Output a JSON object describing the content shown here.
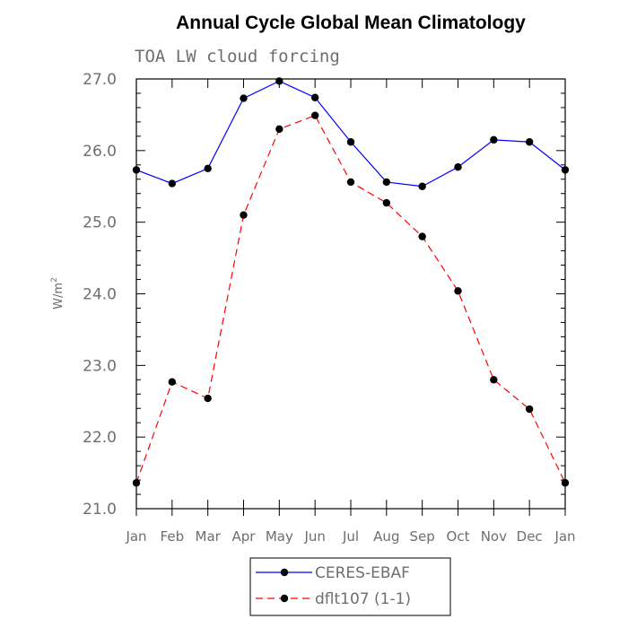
{
  "chart_data": {
    "type": "line",
    "title": "Annual Cycle Global Mean Climatology",
    "subtitle": "TOA LW cloud forcing",
    "ylabel_main": "W/m",
    "ylabel_sup": "2",
    "xlabel": "",
    "categories": [
      "Jan",
      "Feb",
      "Mar",
      "Apr",
      "May",
      "Jun",
      "Jul",
      "Aug",
      "Sep",
      "Oct",
      "Nov",
      "Dec",
      "Jan"
    ],
    "ylim": [
      21.0,
      27.0
    ],
    "yticks": [
      21.0,
      22.0,
      23.0,
      24.0,
      25.0,
      26.0,
      27.0
    ],
    "ytick_labels": [
      "21.0",
      "22.0",
      "23.0",
      "24.0",
      "25.0",
      "26.0",
      "27.0"
    ],
    "grid": false,
    "legend_position": "bottom",
    "series": [
      {
        "name": "CERES-EBAF",
        "color": "#0000ff",
        "dash": "solid",
        "marker": "filled-circle",
        "values": [
          25.73,
          25.54,
          25.75,
          26.73,
          26.97,
          26.74,
          26.12,
          25.56,
          25.5,
          25.77,
          26.15,
          26.12,
          25.73
        ]
      },
      {
        "name": "dflt107 (1-1)",
        "color": "#ff0000",
        "dash": "dashed",
        "marker": "filled-circle",
        "values": [
          21.36,
          22.77,
          22.54,
          25.1,
          26.3,
          26.49,
          25.56,
          25.27,
          24.8,
          24.04,
          22.8,
          22.39,
          21.36
        ]
      }
    ]
  }
}
